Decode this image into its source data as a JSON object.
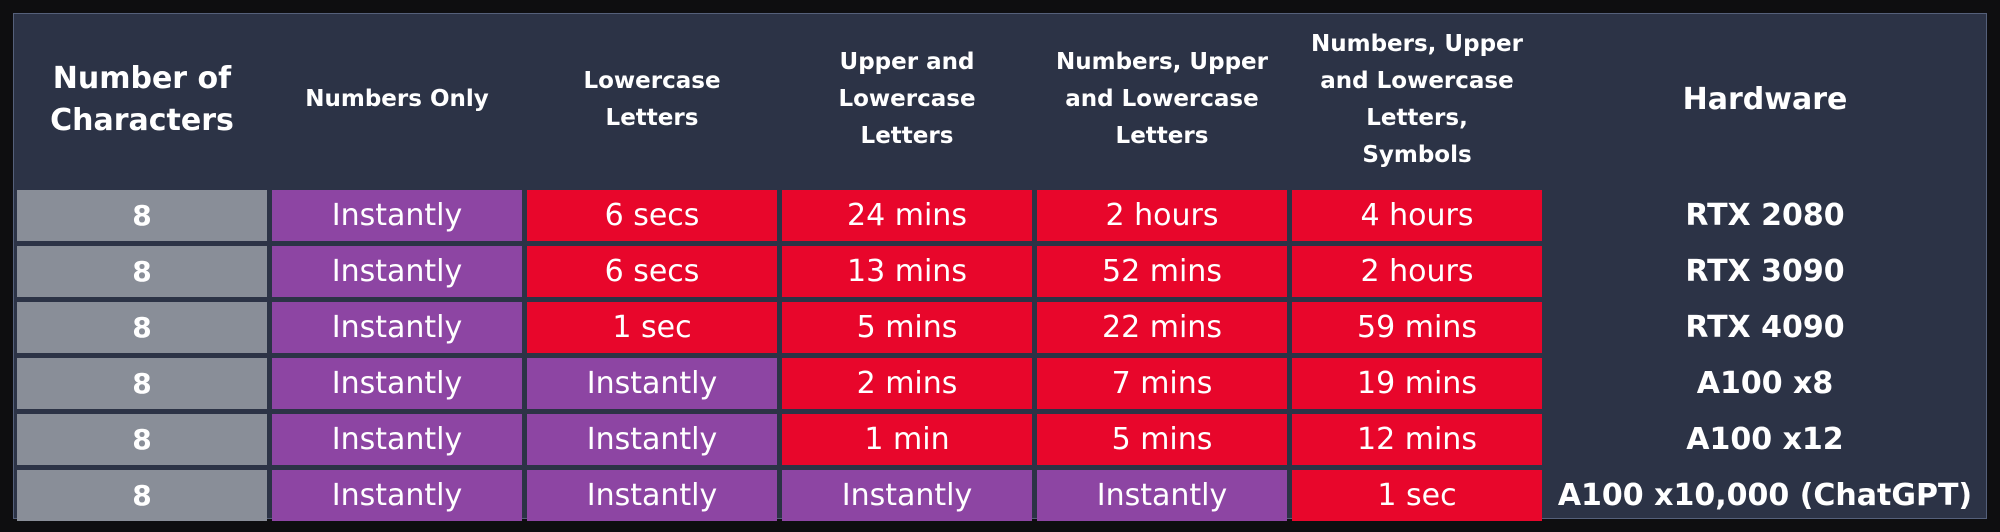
{
  "table": {
    "header": [
      "Number of Characters",
      "Numbers Only",
      "Lowercase Letters",
      "Upper and Lowercase Letters",
      "Numbers, Upper and Lowercase Letters",
      "Numbers, Upper and Lowercase Letters, Symbols",
      "Hardware"
    ],
    "rows": [
      [
        8,
        "Instantly",
        "6 secs",
        "24 mins",
        "2 hours",
        "4 hours",
        "RTX 2080"
      ],
      [
        8,
        "Instantly",
        "6 secs",
        "13 mins",
        "52 mins",
        "2 hours",
        "RTX 3090"
      ],
      [
        8,
        "Instantly",
        "1 sec",
        "5 mins",
        "22 mins",
        "59 mins",
        "RTX 4090"
      ],
      [
        8,
        "Instantly",
        "Instantly",
        "2 mins",
        "7 mins",
        "19 mins",
        "A100 x8"
      ],
      [
        8,
        "Instantly",
        "Instantly",
        "1 min",
        "5 mins",
        "12 mins",
        "A100 x12"
      ],
      [
        8,
        "Instantly",
        "Instantly",
        "Instantly",
        "Instantly",
        "1 sec",
        "A100 x10,000 (ChatGPT)"
      ]
    ]
  }
}
